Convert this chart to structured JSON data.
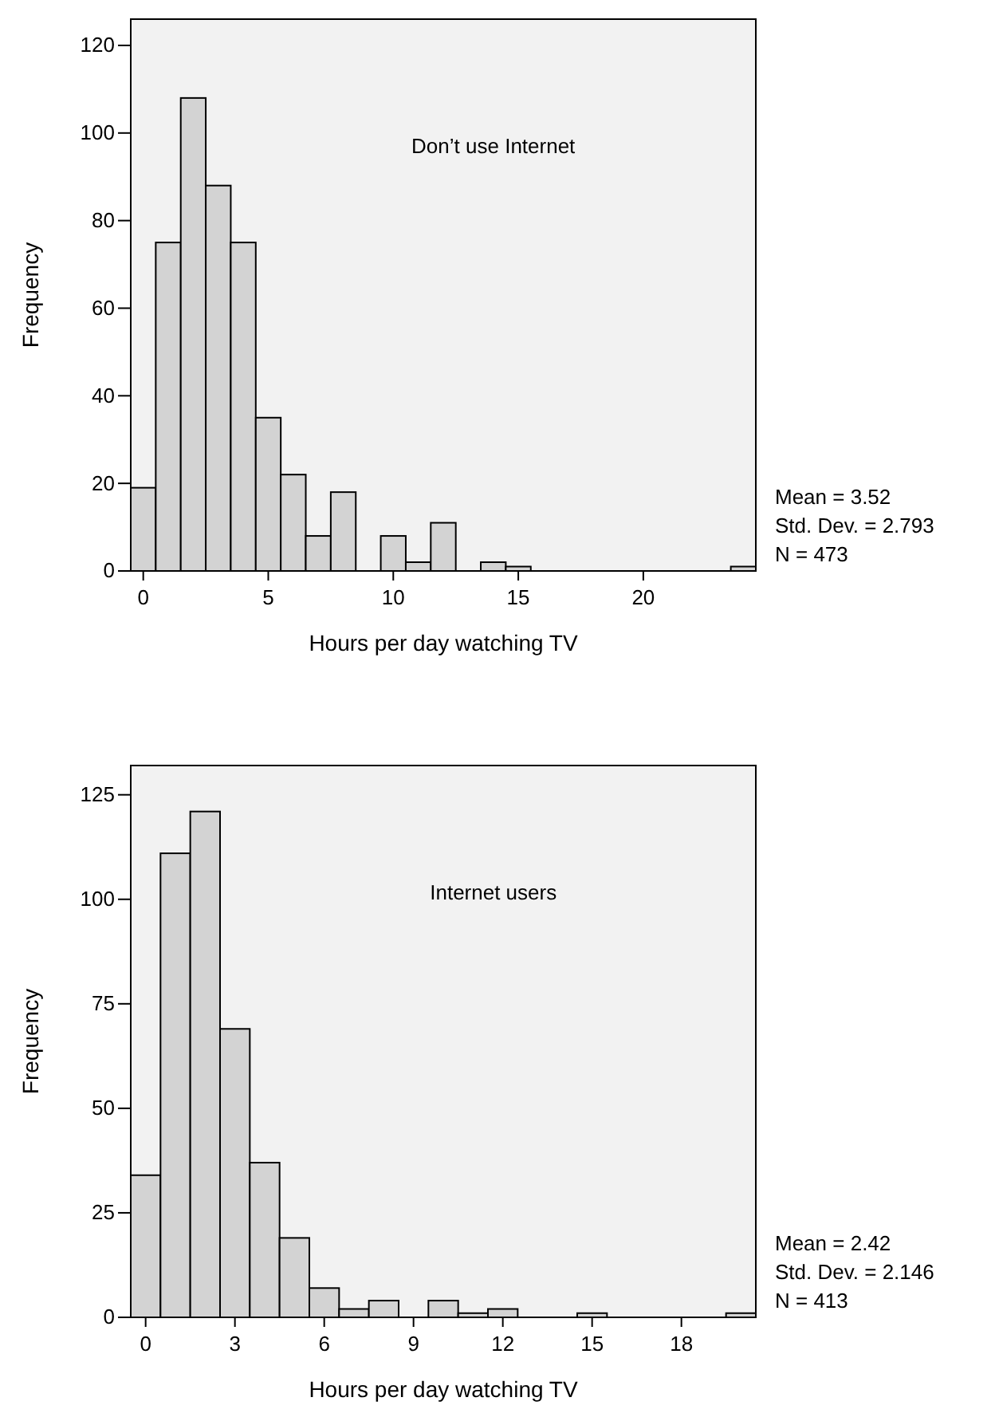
{
  "chart_data": [
    {
      "type": "histogram",
      "color": "#d3d3d3",
      "bins": [
        -0.5,
        0.5,
        1.5,
        2.5,
        3.5,
        4.5,
        5.5,
        6.5,
        7.5,
        8.5,
        9.5,
        10.5,
        11.5,
        12.5,
        13.5,
        14.5,
        15.5,
        16.5,
        17.5,
        18.5,
        19.5,
        20.5,
        21.5,
        22.5,
        23.5,
        24.5
      ],
      "values": [
        19,
        75,
        108,
        88,
        75,
        35,
        22,
        8,
        18,
        0,
        8,
        2,
        11,
        0,
        2,
        1,
        0,
        0,
        0,
        0,
        0,
        0,
        0,
        0,
        1
      ],
      "xlim": [
        -0.5,
        24.5
      ],
      "ylim": [
        0,
        126
      ],
      "xticks": [
        0,
        5,
        10,
        15,
        20
      ],
      "yticks": [
        0,
        20,
        40,
        60,
        80,
        100,
        120
      ],
      "xlabel": "Hours per day watching TV",
      "ylabel": "Frequency",
      "annotations": [
        "Don’t use Internet",
        "Mean = 3.52",
        "Std. Dev. = 2.793",
        "N = 473"
      ]
    },
    {
      "type": "histogram",
      "color": "#d3d3d3",
      "bins": [
        -0.5,
        0.5,
        1.5,
        2.5,
        3.5,
        4.5,
        5.5,
        6.5,
        7.5,
        8.5,
        9.5,
        10.5,
        11.5,
        12.5,
        13.5,
        14.5,
        15.5,
        16.5,
        17.5,
        18.5,
        19.5,
        20.5
      ],
      "values": [
        34,
        111,
        121,
        69,
        37,
        19,
        7,
        2,
        4,
        0,
        4,
        1,
        2,
        0,
        0,
        1,
        0,
        0,
        0,
        0,
        1
      ],
      "xlim": [
        -0.5,
        20.5
      ],
      "ylim": [
        0,
        132
      ],
      "xticks": [
        0,
        3,
        6,
        9,
        12,
        15,
        18
      ],
      "yticks": [
        0,
        25,
        50,
        75,
        100,
        125
      ],
      "xlabel": "Hours per day watching TV",
      "ylabel": "Frequency",
      "annotations": [
        "Internet users",
        "Mean = 2.42",
        "Std. Dev. = 2.146",
        "N = 413"
      ]
    }
  ]
}
